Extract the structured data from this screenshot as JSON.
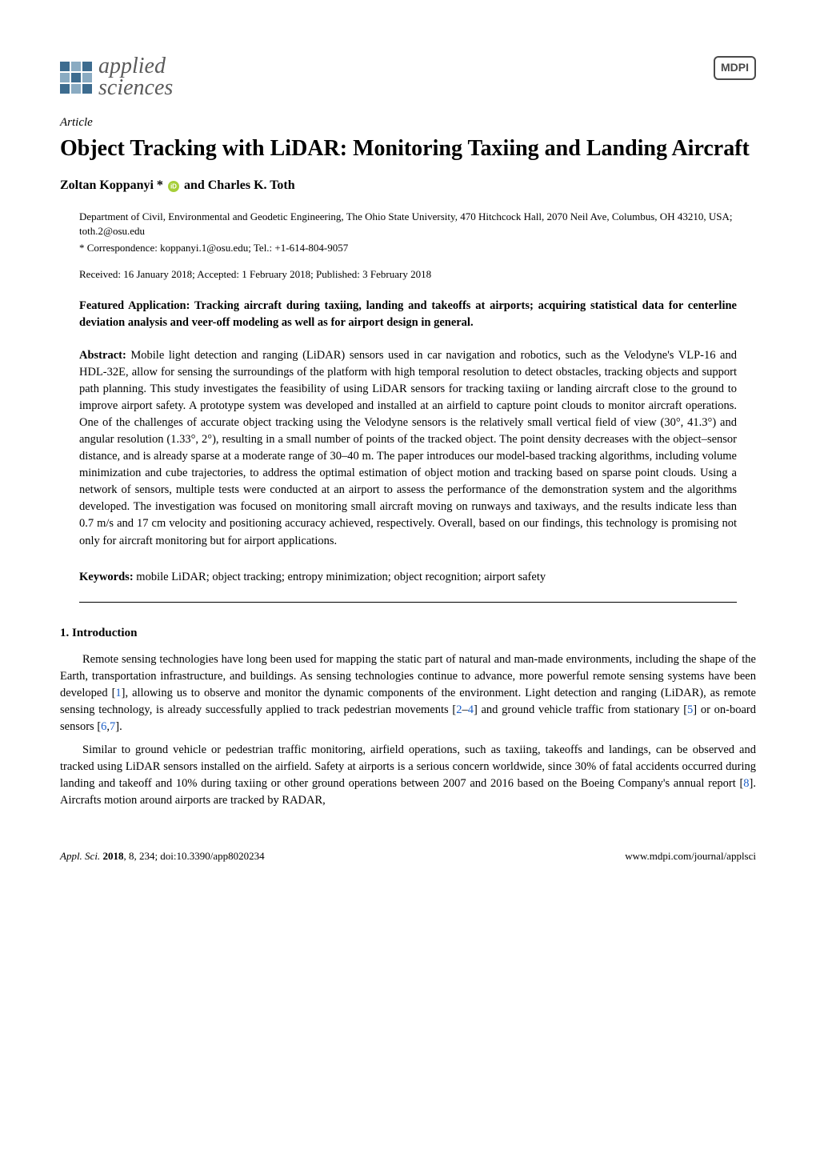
{
  "journal": {
    "name_line1": "applied",
    "name_line2": "sciences",
    "publisher": "MDPI"
  },
  "article": {
    "type": "Article",
    "title": "Object Tracking with LiDAR: Monitoring Taxiing and Landing Aircraft",
    "authors_html": "Zoltan Koppanyi * and Charles K. Toth",
    "author1": "Zoltan Koppanyi *",
    "author_sep": " and ",
    "author2": "Charles K. Toth",
    "affiliation": "Department of Civil, Environmental and Geodetic Engineering, The Ohio State University, 470 Hitchcock Hall, 2070 Neil Ave, Columbus, OH 43210, USA; toth.2@osu.edu",
    "correspondence": "* Correspondence: koppanyi.1@osu.edu; Tel.: +1-614-804-9057",
    "received": "Received: 16 January 2018; Accepted: 1 February 2018; Published: 3 February 2018",
    "featured_application": "Featured Application: Tracking aircraft during taxiing, landing and takeoffs at airports; acquiring statistical data for centerline deviation analysis and veer-off modeling as well as for airport design in general.",
    "abstract_label": "Abstract:",
    "abstract": " Mobile light detection and ranging (LiDAR) sensors used in car navigation and robotics, such as the Velodyne's VLP-16 and HDL-32E, allow for sensing the surroundings of the platform with high temporal resolution to detect obstacles, tracking objects and support path planning. This study investigates the feasibility of using LiDAR sensors for tracking taxiing or landing aircraft close to the ground to improve airport safety. A prototype system was developed and installed at an airfield to capture point clouds to monitor aircraft operations. One of the challenges of accurate object tracking using the Velodyne sensors is the relatively small vertical field of view (30°, 41.3°) and angular resolution (1.33°, 2°), resulting in a small number of points of the tracked object. The point density decreases with the object–sensor distance, and is already sparse at a moderate range of 30–40 m. The paper introduces our model-based tracking algorithms, including volume minimization and cube trajectories, to address the optimal estimation of object motion and tracking based on sparse point clouds. Using a network of sensors, multiple tests were conducted at an airport to assess the performance of the demonstration system and the algorithms developed. The investigation was focused on monitoring small aircraft moving on runways and taxiways, and the results indicate less than 0.7 m/s and 17 cm velocity and positioning accuracy achieved, respectively. Overall, based on our findings, this technology is promising not only for aircraft monitoring but for airport applications.",
    "keywords_label": "Keywords:",
    "keywords": " mobile LiDAR; object tracking; entropy minimization; object recognition; airport safety"
  },
  "sections": {
    "intro_heading": "1. Introduction",
    "intro_p1_pre": "Remote sensing technologies have long been used for mapping the static part of natural and man-made environments, including the shape of the Earth, transportation infrastructure, and buildings. As sensing technologies continue to advance, more powerful remote sensing systems have been developed [",
    "intro_p1_ref1": "1",
    "intro_p1_mid1": "], allowing us to observe and monitor the dynamic components of the environment. Light detection and ranging (LiDAR), as remote sensing technology, is already successfully applied to track pedestrian movements [",
    "intro_p1_ref2": "2",
    "intro_p1_dash": "–",
    "intro_p1_ref3": "4",
    "intro_p1_mid2": "] and ground vehicle traffic from stationary [",
    "intro_p1_ref4": "5",
    "intro_p1_mid3": "] or on-board sensors [",
    "intro_p1_ref5": "6",
    "intro_p1_comma": ",",
    "intro_p1_ref6": "7",
    "intro_p1_end": "].",
    "intro_p2_pre": "Similar to ground vehicle or pedestrian traffic monitoring, airfield operations, such as taxiing, takeoffs and landings, can be observed and tracked using LiDAR sensors installed on the airfield. Safety at airports is a serious concern worldwide, since 30% of fatal accidents occurred during landing and takeoff and 10% during taxiing or other ground operations between 2007 and 2016 based on the Boeing Company's annual report [",
    "intro_p2_ref1": "8",
    "intro_p2_end": "]. Aircrafts motion around airports are tracked by RADAR,"
  },
  "footer": {
    "left_italic": "Appl. Sci. ",
    "left_bold": "2018",
    "left_rest": ", 8, 234; doi:10.3390/app8020234",
    "right": "www.mdpi.com/journal/applsci"
  },
  "colors": {
    "ref_link": "#1a5ec8",
    "orcid": "#a6ce39",
    "logo_primary": "#3d6c8f",
    "logo_secondary": "#8aabc2"
  }
}
